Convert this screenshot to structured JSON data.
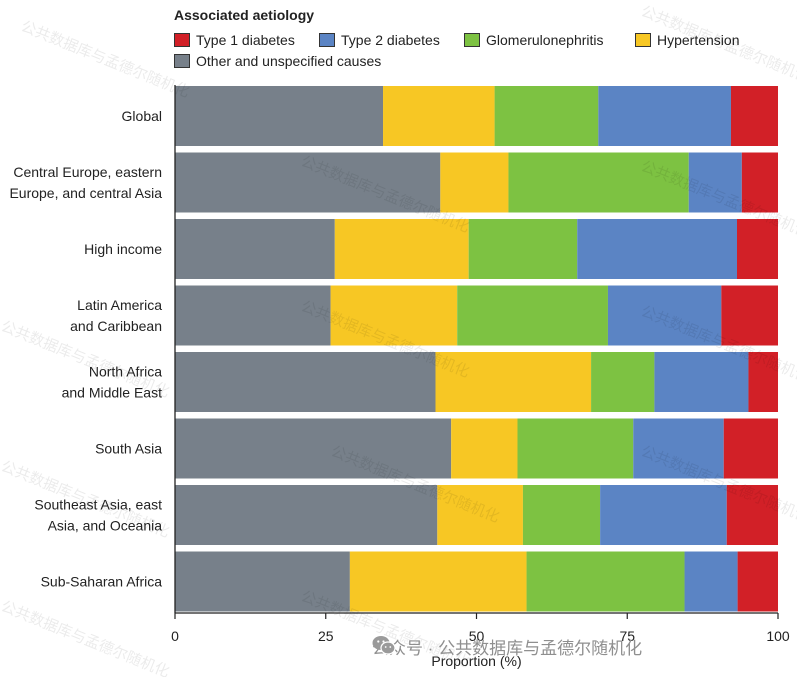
{
  "chart_data": {
    "type": "bar",
    "orientation": "horizontal",
    "stacked": true,
    "legend_title": "Associated aetiology",
    "legend_position": "top-left",
    "categories": [
      "Global",
      "Central Europe, eastern\nEurope, and central Asia",
      "High income",
      "Latin America\nand  Caribbean",
      "North Africa\nand Middle East",
      "South Asia",
      "Southeast Asia, east\nAsia, and Oceania",
      "Sub-Saharan Africa"
    ],
    "series": [
      {
        "name": "Other and unspecified causes",
        "color": "#77808a",
        "values": [
          34.5,
          44,
          26.5,
          25.8,
          43.2,
          45.8,
          43.5,
          29
        ]
      },
      {
        "name": "Hypertension",
        "color": "#f7c724",
        "values": [
          18.5,
          11.3,
          22.2,
          21,
          25.8,
          11,
          14.2,
          29.3
        ]
      },
      {
        "name": "Glomerulonephritis",
        "color": "#7dc242",
        "values": [
          17.2,
          29.9,
          18,
          25,
          10.5,
          19.2,
          12.8,
          26.2
        ]
      },
      {
        "name": "Type 2 diabetes",
        "color": "#5b84c4",
        "values": [
          22,
          8.8,
          26.5,
          18.8,
          15.6,
          15,
          21,
          8.8
        ]
      },
      {
        "name": "Type 1 diabetes",
        "color": "#d22027",
        "values": [
          7.8,
          6,
          6.8,
          9.4,
          4.9,
          9,
          8.5,
          6.7
        ]
      }
    ],
    "xlabel": "Proportion (%)",
    "ylabel": "",
    "xlim": [
      0,
      100
    ],
    "xticks": [
      "0",
      "25",
      "50",
      "75",
      "100"
    ],
    "grid": false
  },
  "legend_order": [
    "Type 1 diabetes",
    "Type 2 diabetes",
    "Glomerulonephritis",
    "Hypertension",
    "Other and unspecified causes"
  ],
  "watermark": {
    "text": "公众号 · 公共数据库与孟德尔随机化",
    "repeat_text": "公共数据库与孟德尔随机化"
  }
}
